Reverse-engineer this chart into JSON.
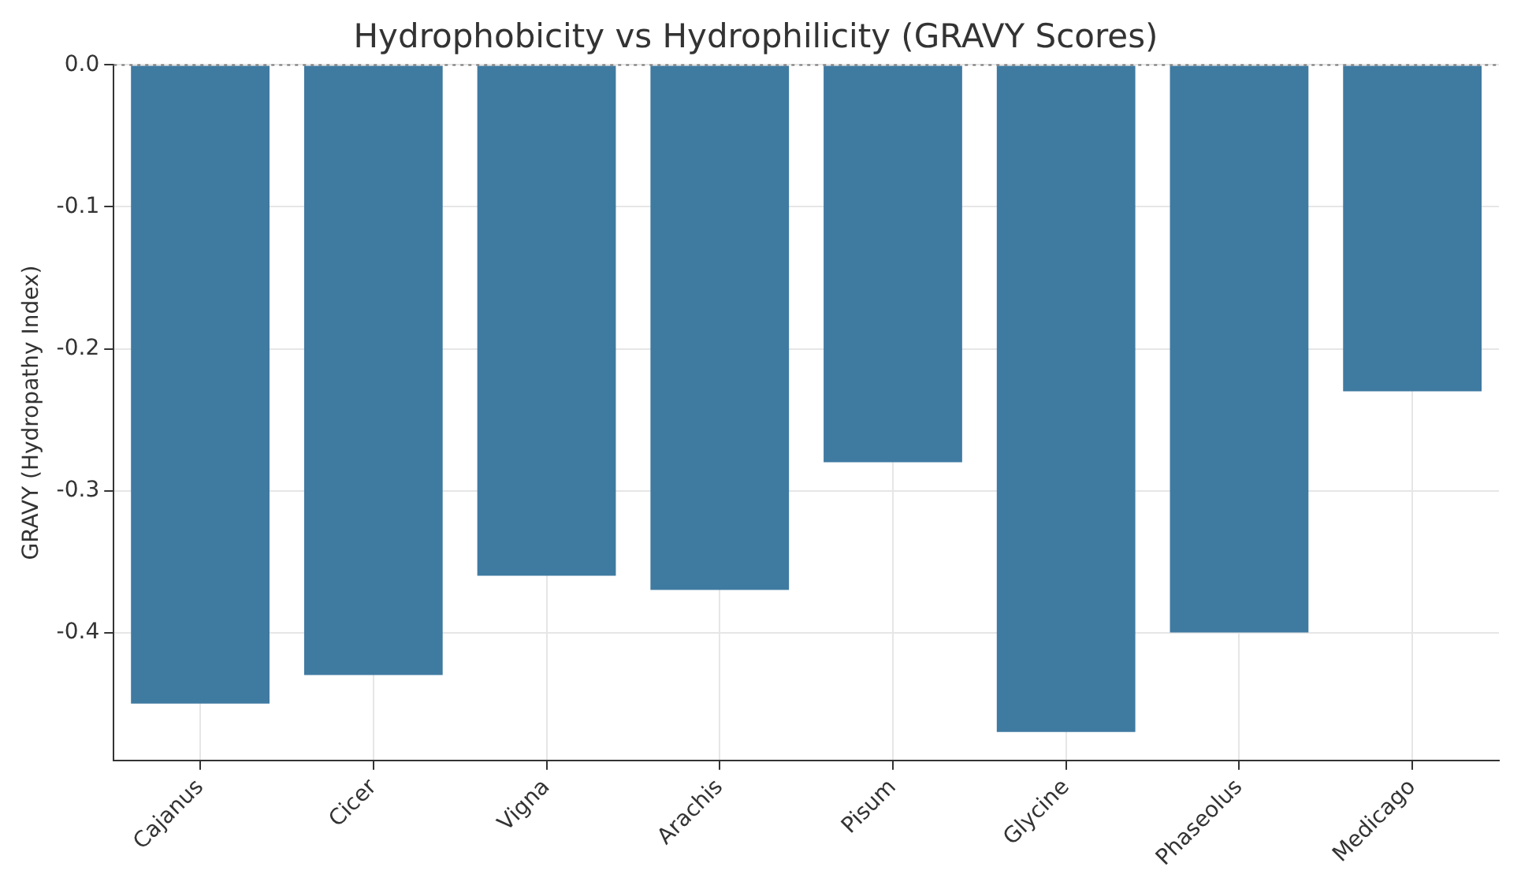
{
  "chart_data": {
    "type": "bar",
    "title": "Hydrophobicity vs Hydrophilicity (GRAVY Scores)",
    "ylabel": "GRAVY (Hydropathy Index)",
    "categories": [
      "Cajanus",
      "Cicer",
      "Vigna",
      "Arachis",
      "Pisum",
      "Glycine",
      "Phaseolus",
      "Medicago"
    ],
    "values": [
      -0.45,
      -0.43,
      -0.36,
      -0.37,
      -0.28,
      -0.47,
      -0.4,
      -0.23
    ],
    "color": "#3f7aa1",
    "ylim": [
      -0.49,
      0
    ],
    "yticks": [
      {
        "value": 0,
        "label": "0.0"
      },
      {
        "value": -0.1,
        "label": "-0.1"
      },
      {
        "value": -0.2,
        "label": "-0.2"
      },
      {
        "value": -0.3,
        "label": "-0.3"
      },
      {
        "value": -0.4,
        "label": "-0.4"
      }
    ],
    "ref_lines": [
      {
        "axis": "y",
        "value": 0,
        "label": null,
        "color": "#777777",
        "line_style": "dotted"
      }
    ],
    "grid": true,
    "legend": false
  }
}
